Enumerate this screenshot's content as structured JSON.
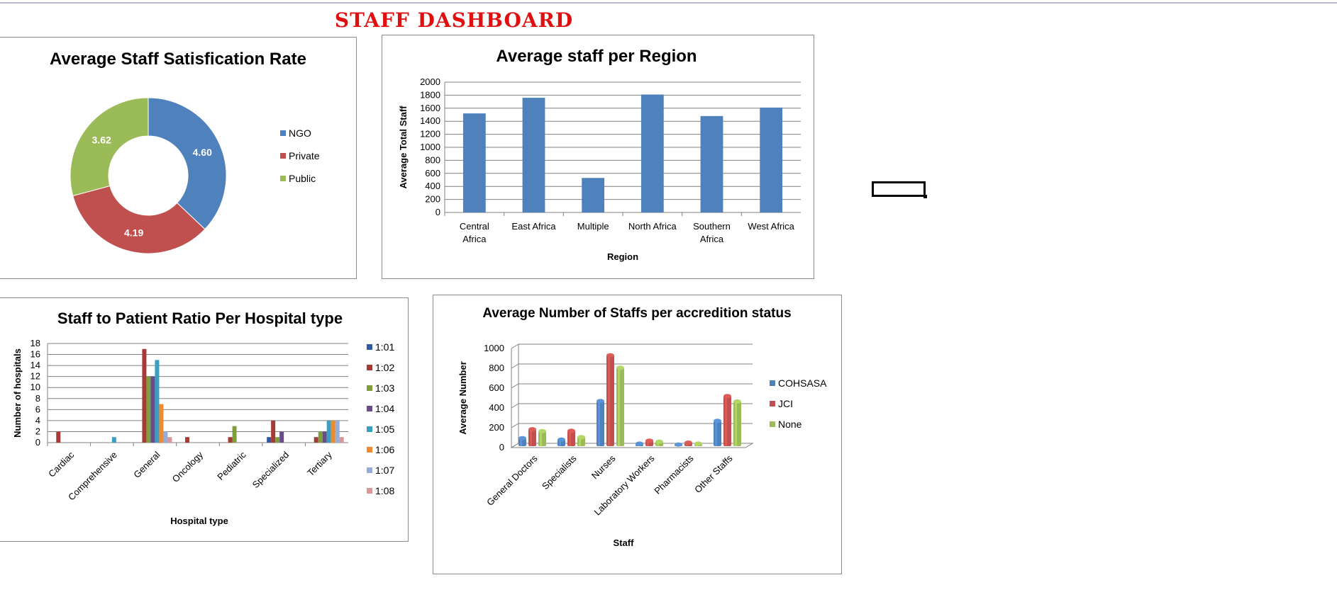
{
  "dashboard": {
    "title": "STAFF DASHBOARD"
  },
  "chart_data": [
    {
      "id": "satisfaction",
      "type": "pie",
      "title": "Average Staff Satisfication Rate",
      "categories": [
        "NGO",
        "Private",
        "Public"
      ],
      "values": [
        4.6,
        4.19,
        3.62
      ],
      "data_labels": [
        "4.60",
        "4.19",
        "3.62"
      ],
      "colors": [
        "#4f81bd",
        "#c0504d",
        "#9bbb59"
      ],
      "legend": "right"
    },
    {
      "id": "region",
      "type": "bar",
      "title": "Average staff per Region",
      "categories": [
        "Central Africa",
        "East Africa",
        "Multiple",
        "North Africa",
        "Southern Africa",
        "West Africa"
      ],
      "values": [
        1520,
        1760,
        530,
        1810,
        1480,
        1610
      ],
      "xlabel": "Region",
      "ylabel": "Average Total Staff",
      "ylim": [
        0,
        2000
      ],
      "yticks": [
        "0",
        "200",
        "400",
        "600",
        "800",
        "1000",
        "1200",
        "1400",
        "1600",
        "1800",
        "2000"
      ],
      "color": "#4f81bd",
      "grid": true
    },
    {
      "id": "ratio",
      "type": "bar",
      "title": "Staff to Patient Ratio Per Hospital type",
      "categories": [
        "Cardiac",
        "Comprehensive",
        "General",
        "Oncology",
        "Pediatric",
        "Specialized",
        "Tertiary"
      ],
      "series": [
        {
          "name": "1:01",
          "color": "#2f5b9e",
          "values": [
            0,
            0,
            0,
            0,
            0,
            1,
            0
          ]
        },
        {
          "name": "1:02",
          "color": "#a53a37",
          "values": [
            2,
            0,
            17,
            1,
            1,
            4,
            1
          ]
        },
        {
          "name": "1:03",
          "color": "#7f9f3f",
          "values": [
            0,
            0,
            12,
            0,
            3,
            1,
            2
          ]
        },
        {
          "name": "1:04",
          "color": "#6a4c8c",
          "values": [
            0,
            0,
            12,
            0,
            0,
            2,
            2
          ]
        },
        {
          "name": "1:05",
          "color": "#3a9fc0",
          "values": [
            0,
            1,
            15,
            0,
            0,
            0,
            4
          ]
        },
        {
          "name": "1:06",
          "color": "#f08a2a",
          "values": [
            0,
            0,
            7,
            0,
            0,
            0,
            4
          ]
        },
        {
          "name": "1:07",
          "color": "#94aedc",
          "values": [
            0,
            0,
            2,
            0,
            0,
            0,
            4
          ]
        },
        {
          "name": "1:08",
          "color": "#d99795",
          "values": [
            0,
            0,
            1,
            0,
            0,
            0,
            1
          ]
        }
      ],
      "xlabel": "Hospital type",
      "ylabel": "Number of hospitals",
      "ylim": [
        0,
        18
      ],
      "yticks": [
        "0",
        "2",
        "4",
        "6",
        "8",
        "10",
        "12",
        "14",
        "16",
        "18"
      ],
      "legend": "right",
      "grid": true
    },
    {
      "id": "accreditation",
      "type": "bar",
      "title": "Average Number of Staffs per accredition status",
      "categories": [
        "General Doctors",
        "Specialists",
        "Nurses",
        "Laboratory Workers",
        "Pharmacists",
        "Other Staffs"
      ],
      "series": [
        {
          "name": "COHSASA",
          "color": "#4f81bd",
          "values": [
            95,
            80,
            470,
            40,
            30,
            270
          ]
        },
        {
          "name": "JCI",
          "color": "#c0504d",
          "values": [
            185,
            170,
            930,
            70,
            50,
            520
          ]
        },
        {
          "name": "None",
          "color": "#9bbb59",
          "values": [
            165,
            105,
            805,
            60,
            40,
            465
          ]
        }
      ],
      "xlabel": "Staff",
      "ylabel": "Average Number",
      "ylim": [
        0,
        1000
      ],
      "yticks": [
        "0",
        "200",
        "400",
        "600",
        "800",
        "1000"
      ],
      "legend": "right",
      "grid": true,
      "style": "3d"
    }
  ]
}
